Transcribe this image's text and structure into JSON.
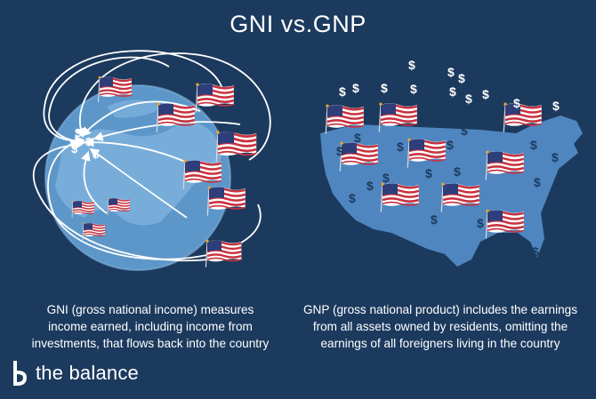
{
  "header": {
    "title": "GNI vs.GNP"
  },
  "captions": {
    "gni_lines": [
      "GNI (gross national income) measures",
      "income earned, including income from",
      "investments, that flows back into the country"
    ],
    "gnp_lines": [
      "GNP (gross national product) includes the earnings",
      "from all assets owned by residents, omitting the",
      "earnings of all foreigners living in the country"
    ]
  },
  "brand": {
    "name": "the balance"
  },
  "symbols": {
    "currency": "$"
  },
  "colors": {
    "background": "#1c3a5e",
    "globe": "#5d97c9",
    "land": "#7fb3de",
    "usa_map": "#4f86c0",
    "flag_red": "#c8313e",
    "flag_blue": "#2d3e7a",
    "text": "#ffffff"
  },
  "icons": [
    "globe-illustration",
    "usa-map-illustration",
    "us-flag-icon",
    "dollar-sign-icon",
    "arrow-icon",
    "balance-logo-icon"
  ]
}
